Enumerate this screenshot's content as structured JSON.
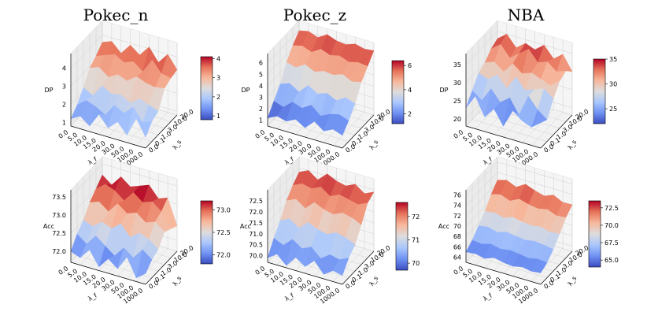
{
  "chart_data": {
    "type": "surface3d",
    "x_label": "λ_f",
    "y_label": "λ_s",
    "x_ticks": [
      "0.0",
      "5.0",
      "10.0",
      "15.0",
      "20.0",
      "30.0",
      "50.0",
      "100.0",
      "1000.0"
    ],
    "y_ticks": [
      "0.0",
      "0.1",
      "1.0",
      "3.0",
      "10.0",
      "20.0"
    ],
    "colormap": [
      "#3b4cc0",
      "#6f92f3",
      "#aac7fd",
      "#dddcdc",
      "#f7b89c",
      "#e7745b",
      "#b40426"
    ],
    "panels": [
      {
        "id": "pokec_n_dp",
        "title": "Pokec_n",
        "metric": "DP",
        "z_ticks": [
          "1",
          "2",
          "3",
          "4"
        ],
        "z_range": [
          0.8,
          4.8
        ],
        "colorbar_ticks": [
          "1",
          "2",
          "3",
          "4"
        ],
        "colorbar_range": [
          0.8,
          4.1
        ],
        "surface": [
          [
            1.2,
            1.5,
            1.1,
            1.9,
            1.3,
            1.8,
            1.2,
            2.3,
            1.4
          ],
          [
            1.6,
            2.0,
            1.8,
            1.5,
            2.2,
            1.9,
            2.4,
            1.7,
            1.9
          ],
          [
            2.2,
            1.9,
            2.6,
            2.3,
            2.4,
            2.1,
            2.5,
            2.3,
            2.1
          ],
          [
            2.9,
            3.1,
            2.7,
            3.0,
            2.8,
            3.2,
            3.0,
            2.9,
            3.0
          ],
          [
            3.2,
            3.4,
            3.6,
            3.3,
            3.5,
            3.1,
            3.9,
            3.3,
            3.2
          ],
          [
            3.6,
            3.8,
            3.3,
            3.9,
            3.5,
            4.1,
            3.4,
            4.0,
            3.3
          ]
        ]
      },
      {
        "id": "pokec_z_dp",
        "title": "Pokec_z",
        "metric": "DP",
        "z_ticks": [
          "1",
          "2",
          "3",
          "4",
          "5",
          "6"
        ],
        "z_range": [
          0.5,
          6.8
        ],
        "colorbar_ticks": [
          "2",
          "4",
          "6"
        ],
        "colorbar_range": [
          1.2,
          6.4
        ],
        "surface": [
          [
            1.2,
            1.6,
            1.4,
            1.8,
            1.3,
            2.1,
            1.5,
            1.9,
            1.6
          ],
          [
            2.1,
            1.8,
            2.5,
            2.2,
            2.7,
            2.0,
            2.4,
            2.6,
            2.3
          ],
          [
            3.0,
            3.3,
            2.8,
            3.6,
            3.1,
            3.4,
            3.0,
            3.5,
            3.2
          ],
          [
            4.3,
            4.1,
            4.6,
            4.2,
            4.5,
            4.4,
            4.7,
            4.3,
            4.5
          ],
          [
            5.2,
            5.4,
            5.1,
            5.6,
            5.3,
            5.5,
            5.2,
            5.4,
            5.3
          ],
          [
            5.9,
            6.1,
            5.8,
            6.3,
            6.0,
            5.9,
            6.2,
            6.0,
            6.1
          ]
        ]
      },
      {
        "id": "nba_dp",
        "title": "NBA",
        "metric": "DP",
        "z_ticks": [
          "20",
          "25",
          "30",
          "35"
        ],
        "z_range": [
          18,
          38
        ],
        "colorbar_ticks": [
          "25",
          "30",
          "35"
        ],
        "colorbar_range": [
          22,
          35
        ],
        "surface": [
          [
            23,
            27,
            22,
            25,
            21,
            26,
            24,
            23,
            25
          ],
          [
            26,
            24,
            28,
            25,
            27,
            23,
            29,
            26,
            24
          ],
          [
            29,
            28,
            30,
            27,
            31,
            28,
            29,
            30,
            28
          ],
          [
            30,
            31,
            29,
            32,
            30,
            31,
            30,
            29,
            31
          ],
          [
            32,
            34,
            31,
            33,
            35,
            32,
            33,
            31,
            32
          ],
          [
            33,
            35,
            32,
            34,
            33,
            35,
            32,
            34,
            30
          ]
        ]
      },
      {
        "id": "pokec_n_acc",
        "title": "",
        "metric": "Acc",
        "z_ticks": [
          "72.0",
          "72.5",
          "73.0",
          "73.5"
        ],
        "z_range": [
          71.7,
          73.7
        ],
        "colorbar_ticks": [
          "72.0",
          "72.5",
          "73.0"
        ],
        "colorbar_range": [
          71.8,
          73.2
        ],
        "surface": [
          [
            72.0,
            71.9,
            72.2,
            71.8,
            72.1,
            71.9,
            72.3,
            71.8,
            72.0
          ],
          [
            72.3,
            72.1,
            72.4,
            72.2,
            72.0,
            72.3,
            72.1,
            72.4,
            72.2
          ],
          [
            72.5,
            72.4,
            72.6,
            72.5,
            72.7,
            72.4,
            72.6,
            72.5,
            72.3
          ],
          [
            72.8,
            72.9,
            72.7,
            73.0,
            72.8,
            72.9,
            72.7,
            72.8,
            72.6
          ],
          [
            73.0,
            73.2,
            73.1,
            72.9,
            73.2,
            73.0,
            73.1,
            72.9,
            72.5
          ],
          [
            73.2,
            73.0,
            73.3,
            73.1,
            73.2,
            73.3,
            73.0,
            73.1,
            72.4
          ]
        ]
      },
      {
        "id": "pokec_z_acc",
        "title": "",
        "metric": "Acc",
        "z_ticks": [
          "70.0",
          "70.5",
          "71.0",
          "71.5",
          "72.0",
          "72.5"
        ],
        "z_range": [
          69.7,
          73.0
        ],
        "colorbar_ticks": [
          "70",
          "71",
          "72"
        ],
        "colorbar_range": [
          69.7,
          72.6
        ],
        "surface": [
          [
            69.9,
            70.2,
            69.8,
            70.3,
            70.0,
            70.4,
            69.9,
            70.2,
            70.1
          ],
          [
            70.5,
            70.3,
            70.7,
            70.4,
            70.6,
            70.2,
            70.5,
            70.4,
            70.6
          ],
          [
            71.0,
            71.2,
            70.9,
            71.3,
            71.1,
            71.0,
            71.2,
            71.1,
            70.9
          ],
          [
            71.6,
            71.8,
            71.5,
            71.9,
            71.7,
            71.6,
            71.8,
            71.7,
            71.5
          ],
          [
            72.0,
            72.2,
            72.1,
            72.3,
            72.0,
            72.2,
            72.1,
            72.0,
            72.2
          ],
          [
            72.3,
            72.5,
            72.2,
            72.6,
            72.4,
            72.3,
            72.5,
            72.2,
            72.4
          ]
        ]
      },
      {
        "id": "nba_acc",
        "title": "",
        "metric": "Acc",
        "z_ticks": [
          "64",
          "66",
          "68",
          "70",
          "72",
          "74",
          "76"
        ],
        "z_range": [
          63,
          77
        ],
        "colorbar_ticks": [
          "65.0",
          "67.5",
          "70.0",
          "72.5"
        ],
        "colorbar_range": [
          64,
          73.5
        ],
        "surface": [
          [
            65.0,
            65.2,
            64.8,
            65.5,
            65.1,
            64.9,
            65.3,
            65.0,
            65.2
          ],
          [
            66.0,
            65.8,
            66.3,
            65.9,
            66.2,
            66.0,
            65.7,
            66.1,
            65.9
          ],
          [
            67.5,
            67.8,
            67.3,
            67.9,
            67.6,
            67.4,
            67.7,
            67.5,
            67.2
          ],
          [
            69.0,
            69.3,
            68.8,
            69.5,
            69.1,
            68.9,
            69.2,
            68.7,
            68.9
          ],
          [
            71.0,
            71.5,
            70.8,
            71.7,
            71.2,
            70.9,
            71.3,
            70.6,
            70.8
          ],
          [
            72.5,
            73.0,
            72.2,
            73.3,
            72.6,
            72.1,
            72.8,
            71.9,
            72.0
          ]
        ]
      }
    ]
  }
}
